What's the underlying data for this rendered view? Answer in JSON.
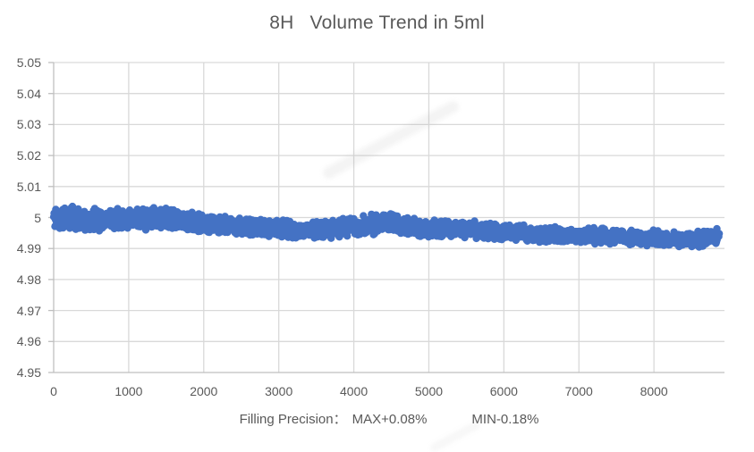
{
  "title": "8H   Volume Trend in 5ml",
  "footer": {
    "label": "Filling Precision：",
    "max": "MAX+0.08%",
    "min": "MIN-0.18%"
  },
  "colors": {
    "marker": "#4472C4",
    "gridline": "#D9D9D9",
    "axis": "#BFBFBF",
    "text": "#595959"
  },
  "chart_data": {
    "type": "scatter",
    "title": "8H   Volume Trend in 5ml",
    "xlabel": "Filling Precision：MAX+0.08%      MIN-0.18%",
    "ylabel": "",
    "xlim": [
      0,
      8940
    ],
    "ylim": [
      4.95,
      5.05
    ],
    "x_ticks": [
      0,
      1000,
      2000,
      3000,
      4000,
      5000,
      6000,
      7000,
      8000
    ],
    "y_ticks": [
      4.95,
      4.96,
      4.97,
      4.98,
      4.99,
      5,
      5.01,
      5.02,
      5.03,
      5.04,
      5.05
    ],
    "grid": true,
    "legend": false,
    "nominal_volume_ml": 5,
    "max_deviation": "+0.08%",
    "min_deviation": "-0.18%",
    "x_extent_of_data": 8870,
    "band_envelope": [
      {
        "x": 0,
        "lo": 4.995,
        "hi": 5.0042
      },
      {
        "x": 200,
        "lo": 4.9958,
        "hi": 5.004
      },
      {
        "x": 600,
        "lo": 4.9955,
        "hi": 5.0032
      },
      {
        "x": 1000,
        "lo": 4.9958,
        "hi": 5.003
      },
      {
        "x": 1450,
        "lo": 4.996,
        "hi": 5.0038
      },
      {
        "x": 1800,
        "lo": 4.9952,
        "hi": 5.0022
      },
      {
        "x": 2200,
        "lo": 4.9945,
        "hi": 5.0008
      },
      {
        "x": 2600,
        "lo": 4.9938,
        "hi": 5.0
      },
      {
        "x": 3000,
        "lo": 4.993,
        "hi": 4.9995
      },
      {
        "x": 3400,
        "lo": 4.9925,
        "hi": 4.9988
      },
      {
        "x": 3800,
        "lo": 4.9932,
        "hi": 4.9998
      },
      {
        "x": 4200,
        "lo": 4.9942,
        "hi": 5.001
      },
      {
        "x": 4500,
        "lo": 4.9945,
        "hi": 5.0018
      },
      {
        "x": 4800,
        "lo": 4.9938,
        "hi": 4.9998
      },
      {
        "x": 5200,
        "lo": 4.9932,
        "hi": 4.9992
      },
      {
        "x": 5600,
        "lo": 4.993,
        "hi": 4.999
      },
      {
        "x": 6000,
        "lo": 4.9922,
        "hi": 4.9982
      },
      {
        "x": 6400,
        "lo": 4.9918,
        "hi": 4.9976
      },
      {
        "x": 6800,
        "lo": 4.9915,
        "hi": 4.9972
      },
      {
        "x": 7200,
        "lo": 4.9912,
        "hi": 4.997
      },
      {
        "x": 7600,
        "lo": 4.991,
        "hi": 4.9965
      },
      {
        "x": 8000,
        "lo": 4.9906,
        "hi": 4.996
      },
      {
        "x": 8400,
        "lo": 4.99,
        "hi": 4.9956
      },
      {
        "x": 8600,
        "lo": 4.9896,
        "hi": 4.9958
      },
      {
        "x": 8870,
        "lo": 4.991,
        "hi": 4.997
      }
    ]
  }
}
